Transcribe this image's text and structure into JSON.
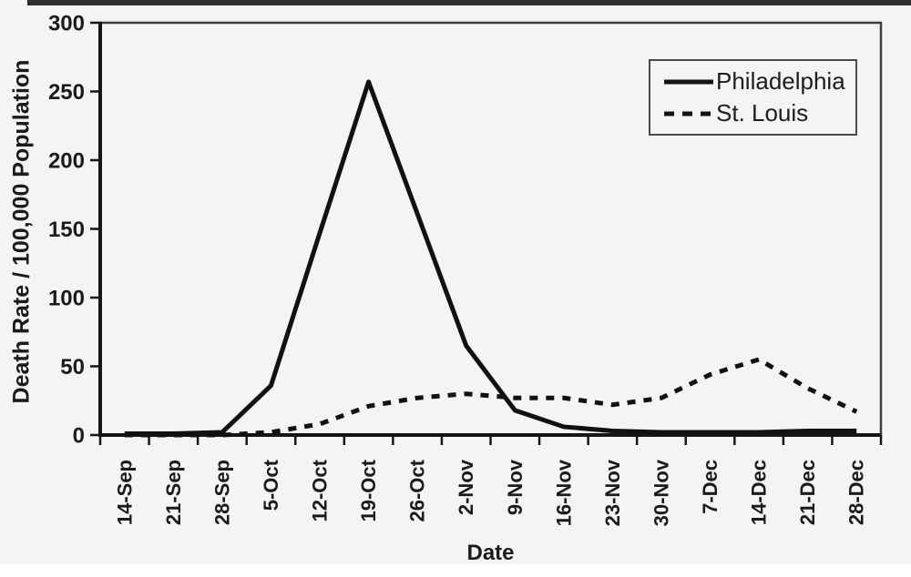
{
  "figure": {
    "background": "#f4f4f4",
    "ink_color": "#1b1b1b",
    "axis_color": "#161616",
    "border_color": "#3d3d3d",
    "has_top_scan_artifact": true
  },
  "chart_data": {
    "type": "line",
    "title": "",
    "xlabel": "Date",
    "ylabel": "Death Rate / 100,000 Population",
    "ylim": [
      0,
      300
    ],
    "y_ticks": [
      0,
      50,
      100,
      150,
      200,
      250,
      300
    ],
    "grid": false,
    "legend_position": "top-right-inside",
    "categories": [
      "14-Sep",
      "21-Sep",
      "28-Sep",
      "5-Oct",
      "12-Oct",
      "19-Oct",
      "26-Oct",
      "2-Nov",
      "9-Nov",
      "16-Nov",
      "23-Nov",
      "30-Nov",
      "7-Dec",
      "14-Dec",
      "21-Dec",
      "28-Dec"
    ],
    "series": [
      {
        "name": "Philadelphia",
        "line_style": "solid",
        "color": "#111111",
        "values": [
          1,
          1,
          2,
          36,
          147,
          257,
          161,
          65,
          18,
          6,
          3,
          2,
          2,
          2,
          3,
          3
        ]
      },
      {
        "name": "St. Louis",
        "line_style": "dashed",
        "color": "#111111",
        "values": [
          0,
          0,
          0,
          2,
          8,
          21,
          27,
          30,
          27,
          27,
          22,
          27,
          44,
          55,
          34,
          17
        ]
      }
    ]
  }
}
